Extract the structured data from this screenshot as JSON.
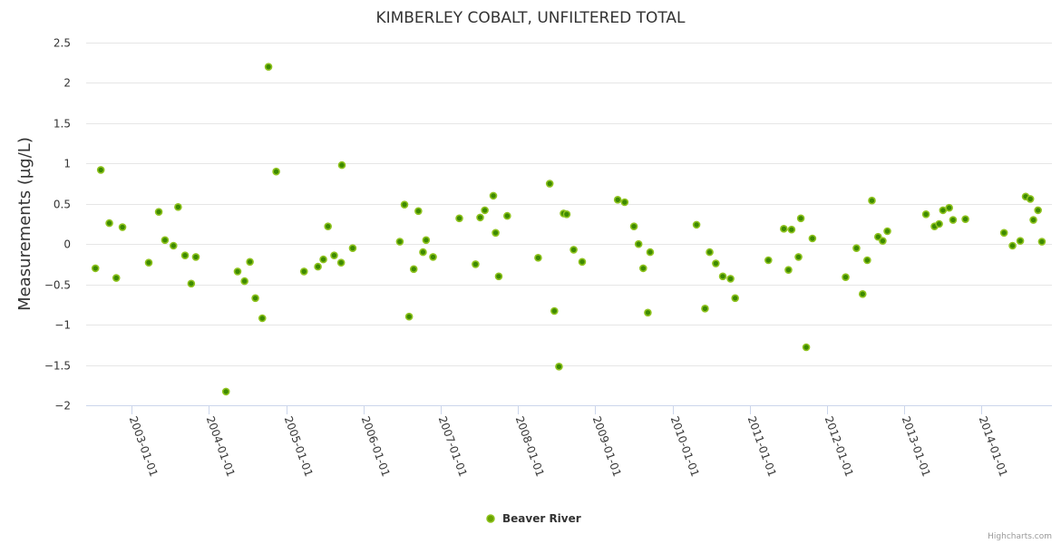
{
  "chart_data": {
    "type": "scatter",
    "title": "KIMBERLEY COBALT, UNFILTERED TOTAL",
    "xlabel": "",
    "ylabel": "Measurements (µg/L)",
    "ylim": [
      -2,
      2.5
    ],
    "yticks": [
      -2,
      -1.5,
      -1,
      -0.5,
      0,
      0.5,
      1,
      1.5,
      2,
      2.5
    ],
    "ytick_labels": [
      "−2",
      "−1.5",
      "−1",
      "−0.5",
      "0",
      "0.5",
      "1",
      "1.5",
      "2",
      "2.5"
    ],
    "xlim": [
      2002.41,
      2014.91
    ],
    "xticks": [
      2003,
      2004,
      2005,
      2006,
      2007,
      2008,
      2009,
      2010,
      2011,
      2012,
      2013,
      2014
    ],
    "xtick_labels": [
      "2003-01-01",
      "2004-01-01",
      "2005-01-01",
      "2006-01-01",
      "2007-01-01",
      "2008-01-01",
      "2009-01-01",
      "2010-01-01",
      "2011-01-01",
      "2012-01-01",
      "2013-01-01",
      "2014-01-01"
    ],
    "grid": true,
    "legend_position": "bottom-center",
    "series": [
      {
        "name": "Beaver River",
        "color": "#6aa400",
        "points": [
          [
            2002.53,
            -0.3
          ],
          [
            2002.6,
            0.92
          ],
          [
            2002.71,
            0.26
          ],
          [
            2002.8,
            -0.42
          ],
          [
            2002.88,
            0.21
          ],
          [
            2003.22,
            -0.23
          ],
          [
            2003.35,
            0.4
          ],
          [
            2003.43,
            0.05
          ],
          [
            2003.54,
            -0.02
          ],
          [
            2003.6,
            0.46
          ],
          [
            2003.69,
            -0.14
          ],
          [
            2003.77,
            -0.49
          ],
          [
            2003.83,
            -0.16
          ],
          [
            2004.22,
            -1.83
          ],
          [
            2004.37,
            -0.34
          ],
          [
            2004.46,
            -0.46
          ],
          [
            2004.53,
            -0.22
          ],
          [
            2004.6,
            -0.67
          ],
          [
            2004.69,
            -0.92
          ],
          [
            2004.77,
            2.2
          ],
          [
            2004.87,
            0.9
          ],
          [
            2005.23,
            -0.34
          ],
          [
            2005.41,
            -0.28
          ],
          [
            2005.48,
            -0.19
          ],
          [
            2005.54,
            0.22
          ],
          [
            2005.62,
            -0.14
          ],
          [
            2005.71,
            -0.23
          ],
          [
            2005.72,
            0.98
          ],
          [
            2005.86,
            -0.05
          ],
          [
            2006.47,
            0.03
          ],
          [
            2006.53,
            0.49
          ],
          [
            2006.59,
            -0.9
          ],
          [
            2006.65,
            -0.31
          ],
          [
            2006.71,
            0.41
          ],
          [
            2006.77,
            -0.1
          ],
          [
            2006.81,
            0.05
          ],
          [
            2006.9,
            -0.16
          ],
          [
            2007.24,
            0.32
          ],
          [
            2007.45,
            -0.25
          ],
          [
            2007.51,
            0.33
          ],
          [
            2007.57,
            0.42
          ],
          [
            2007.68,
            0.6
          ],
          [
            2007.71,
            0.14
          ],
          [
            2007.75,
            -0.4
          ],
          [
            2007.86,
            0.35
          ],
          [
            2008.26,
            -0.17
          ],
          [
            2008.41,
            0.75
          ],
          [
            2008.47,
            -0.83
          ],
          [
            2008.53,
            -1.52
          ],
          [
            2008.59,
            0.38
          ],
          [
            2008.63,
            0.37
          ],
          [
            2008.72,
            -0.07
          ],
          [
            2008.83,
            -0.22
          ],
          [
            2009.29,
            0.55
          ],
          [
            2009.38,
            0.52
          ],
          [
            2009.5,
            0.22
          ],
          [
            2009.56,
            0.0
          ],
          [
            2009.62,
            -0.3
          ],
          [
            2009.68,
            -0.85
          ],
          [
            2009.71,
            -0.1
          ],
          [
            2010.31,
            0.24
          ],
          [
            2010.42,
            -0.8
          ],
          [
            2010.48,
            -0.1
          ],
          [
            2010.56,
            -0.24
          ],
          [
            2010.65,
            -0.4
          ],
          [
            2010.75,
            -0.43
          ],
          [
            2010.81,
            -0.67
          ],
          [
            2011.24,
            -0.2
          ],
          [
            2011.44,
            0.19
          ],
          [
            2011.5,
            -0.32
          ],
          [
            2011.54,
            0.18
          ],
          [
            2011.63,
            -0.16
          ],
          [
            2011.66,
            0.32
          ],
          [
            2011.73,
            -1.28
          ],
          [
            2011.81,
            0.07
          ],
          [
            2012.24,
            -0.41
          ],
          [
            2012.38,
            -0.05
          ],
          [
            2012.46,
            -0.62
          ],
          [
            2012.52,
            -0.2
          ],
          [
            2012.58,
            0.54
          ],
          [
            2012.66,
            0.09
          ],
          [
            2012.72,
            0.04
          ],
          [
            2012.78,
            0.16
          ],
          [
            2013.28,
            0.37
          ],
          [
            2013.39,
            0.22
          ],
          [
            2013.45,
            0.25
          ],
          [
            2013.5,
            0.42
          ],
          [
            2013.58,
            0.45
          ],
          [
            2013.63,
            0.3
          ],
          [
            2013.79,
            0.31
          ],
          [
            2014.29,
            0.14
          ],
          [
            2014.4,
            -0.02
          ],
          [
            2014.5,
            0.04
          ],
          [
            2014.57,
            0.59
          ],
          [
            2014.63,
            0.56
          ],
          [
            2014.67,
            0.3
          ],
          [
            2014.73,
            0.42
          ],
          [
            2014.78,
            0.03
          ]
        ]
      }
    ]
  },
  "credits": "Highcharts.com"
}
